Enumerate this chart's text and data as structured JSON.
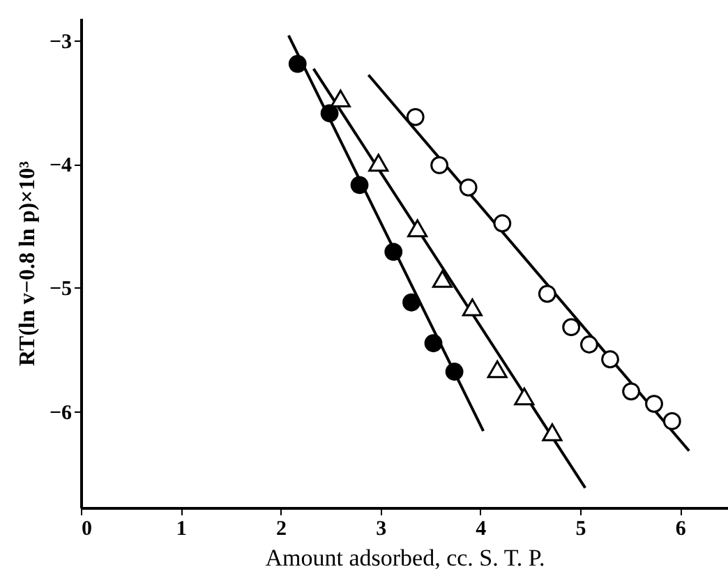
{
  "chart_data": {
    "type": "scatter",
    "xlabel": "Amount adsorbed, cc. S. T. P.",
    "ylabel": "RT(ln v−0.8 ln p)×10³",
    "xlim": [
      0,
      6.48
    ],
    "ylim": [
      -6.78,
      -2.82
    ],
    "xticks": [
      0,
      1,
      2,
      3,
      4,
      5,
      6
    ],
    "yticks": [
      -3,
      -4,
      -5,
      -6
    ],
    "grid": false,
    "series": [
      {
        "marker": "circle",
        "color": "#000000",
        "x": [
          2.17,
          2.49,
          2.79,
          3.13,
          3.31,
          3.53,
          3.74
        ],
        "values": [
          -3.19,
          -3.59,
          -4.17,
          -4.71,
          -5.12,
          -5.45,
          -5.68
        ]
      },
      {
        "marker": "triangle",
        "color": "#ffffff",
        "x": [
          2.6,
          2.98,
          3.37,
          3.62,
          3.92,
          4.17,
          4.44,
          4.72
        ],
        "values": [
          -3.47,
          -3.99,
          -4.52,
          -4.93,
          -5.16,
          -5.66,
          -5.88,
          -6.17
        ]
      },
      {
        "marker": "circle",
        "color": "#ffffff",
        "x": [
          3.35,
          3.59,
          3.88,
          4.22,
          4.67,
          4.91,
          5.09,
          5.3,
          5.51,
          5.74,
          5.92
        ],
        "values": [
          -3.62,
          -4.01,
          -4.19,
          -4.48,
          -5.05,
          -5.32,
          -5.46,
          -5.58,
          -5.84,
          -5.94,
          -6.08
        ]
      },
      {
        "type": "line",
        "marker": "none",
        "line_style": "solid",
        "color": "#000000",
        "x": [
          2.08,
          4.03
        ],
        "values": [
          -2.96,
          -6.16
        ]
      },
      {
        "type": "line",
        "marker": "none",
        "line_style": "solid",
        "color": "#000000",
        "x": [
          2.33,
          5.05
        ],
        "values": [
          -3.23,
          -6.62
        ]
      },
      {
        "type": "line",
        "marker": "none",
        "line_style": "solid",
        "color": "#000000",
        "x": [
          2.88,
          6.09
        ],
        "values": [
          -3.28,
          -6.32
        ]
      }
    ]
  }
}
